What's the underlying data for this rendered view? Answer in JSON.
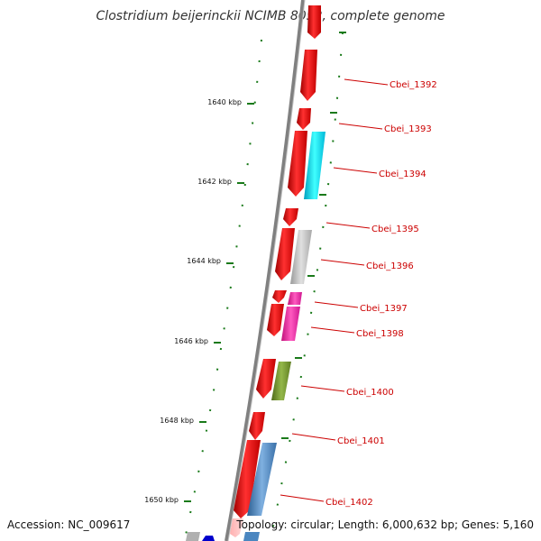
{
  "title": "Clostridium beijerinckii NCIMB 8052, complete genome",
  "footer": {
    "accession": "Accession: NC_009617",
    "topology": "Topology: circular; Length: 6,000,632 bp; Genes: 5,160"
  },
  "scale": {
    "labels": [
      "1640 kbp",
      "1642 kbp",
      "1644 kbp",
      "1646 kbp",
      "1648 kbp",
      "1650 kbp"
    ]
  },
  "genes": [
    {
      "id": "Cbei_1392",
      "color": "#ff0000",
      "partner_color": null
    },
    {
      "id": "Cbei_1393",
      "color": "#ff0000",
      "partner_color": null
    },
    {
      "id": "Cbei_1394",
      "color": "#ff0000",
      "partner_color": "#00e5ff"
    },
    {
      "id": "Cbei_1395",
      "color": "#ff0000",
      "partner_color": null
    },
    {
      "id": "Cbei_1396",
      "color": "#ff0000",
      "partner_color": "#b8b8b8"
    },
    {
      "id": "Cbei_1397",
      "color": "#ff0000",
      "partner_color": "#ff3ab0"
    },
    {
      "id": "Cbei_1398",
      "color": "#ff0000",
      "partner_color": "#ff1493"
    },
    {
      "id": "Cbei_1400",
      "color": "#ff0000",
      "partner_color": "#7a9a2e"
    },
    {
      "id": "Cbei_1401",
      "color": "#ff0000",
      "partner_color": null
    },
    {
      "id": "Cbei_1402",
      "color": "#ff0000",
      "partner_color": "#4a86c0"
    }
  ],
  "colors": {
    "backbone": "#808080",
    "tick": "#1a7a1a",
    "gene_label": "#cc0000",
    "leader_line": "#cc0000"
  }
}
